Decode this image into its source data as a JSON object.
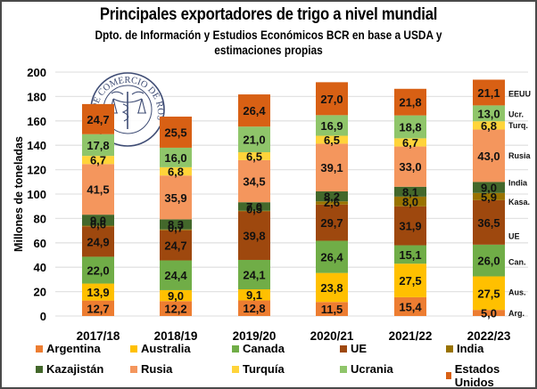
{
  "chart_data": {
    "type": "bar",
    "stacked": true,
    "title": "Principales exportadores de trigo a nivel mundial",
    "subtitle": "Dpto. de Información y Estudios Económicos BCR en base a USDA y estimaciones propias",
    "subtitle_lines": [
      "Dpto. de Información y Estudios Económicos BCR en base a USDA y",
      "estimaciones propias"
    ],
    "xlabel": "",
    "ylabel": "Millones de toneladas",
    "ylim": [
      0,
      200
    ],
    "yticks": [
      0,
      20,
      40,
      60,
      80,
      100,
      120,
      140,
      160,
      180,
      200
    ],
    "grid": true,
    "legend_position": "bottom",
    "categories": [
      "2017/18",
      "2018/19",
      "2019/20",
      "2020/21",
      "2021/22",
      "2022/23"
    ],
    "series": [
      {
        "name": "Argentina",
        "color": "#ED7D31",
        "values": [
          12.7,
          12.2,
          12.8,
          11.5,
          15.4,
          5.0
        ],
        "labels": [
          "12,7",
          "12,2",
          "12,8",
          "11,5",
          "15,4",
          "5,0"
        ]
      },
      {
        "name": "Australia",
        "color": "#FFC000",
        "values": [
          13.9,
          9.0,
          9.1,
          23.8,
          27.5,
          27.5
        ],
        "labels": [
          "13,9",
          "9,0",
          "9,1",
          "23,8",
          "27,5",
          "27,5"
        ]
      },
      {
        "name": "Canada",
        "color": "#70AD47",
        "values": [
          22.0,
          24.4,
          24.1,
          26.4,
          15.1,
          26.0
        ],
        "labels": [
          "22,0",
          "24,4",
          "24,1",
          "26,4",
          "15,1",
          "26,0"
        ]
      },
      {
        "name": "UE",
        "color": "#9E480E",
        "values": [
          24.9,
          24.7,
          39.8,
          29.7,
          31.9,
          36.5
        ],
        "labels": [
          "24,9",
          "24,7",
          "39,8",
          "29,7",
          "31,9",
          "36,5"
        ]
      },
      {
        "name": "India",
        "color": "#997300",
        "values": [
          0.6,
          0.7,
          0.5,
          2.6,
          8.0,
          5.9
        ],
        "labels": [
          "0,6",
          "0,7",
          "0,5",
          "2,6",
          "8,0",
          "5,9"
        ]
      },
      {
        "name": "Kazajistán",
        "color": "#43682B",
        "values": [
          9.0,
          8.3,
          7.0,
          8.2,
          8.1,
          9.0
        ],
        "labels": [
          "9,0",
          "8,3",
          "7,0",
          "8,2",
          "8,1",
          "9,0"
        ]
      },
      {
        "name": "Rusia",
        "color": "#F4965D",
        "values": [
          41.5,
          35.9,
          34.5,
          39.1,
          33.0,
          43.0
        ],
        "labels": [
          "41,5",
          "35,9",
          "34,5",
          "39,1",
          "33,0",
          "43,0"
        ]
      },
      {
        "name": "Turquía",
        "color": "#FFD43A",
        "values": [
          6.7,
          6.8,
          6.5,
          6.5,
          6.7,
          6.8
        ],
        "labels": [
          "6,7",
          "6,8",
          "6,5",
          "6,5",
          "6,7",
          "6,8"
        ]
      },
      {
        "name": "Ucrania",
        "color": "#8FC56A",
        "values": [
          17.8,
          16.0,
          21.0,
          16.9,
          18.8,
          13.0
        ],
        "labels": [
          "17,8",
          "16,0",
          "21,0",
          "16,9",
          "18,8",
          "13,0"
        ]
      },
      {
        "name": "Estados Unidos",
        "color": "#D86014",
        "values": [
          24.7,
          25.5,
          26.4,
          27.0,
          21.8,
          21.1
        ],
        "labels": [
          "24,7",
          "25,5",
          "26,4",
          "27,0",
          "21,8",
          "21,1"
        ]
      }
    ],
    "side_labels": [
      {
        "text": "EEUU",
        "at": 183
      },
      {
        "text": "Ucr.",
        "at": 166
      },
      {
        "text": "Turq.",
        "at": 157
      },
      {
        "text": "Rusia",
        "at": 132
      },
      {
        "text": "India",
        "at": 110
      },
      {
        "text": "Kasa.",
        "at": 94
      },
      {
        "text": "UE",
        "at": 66
      },
      {
        "text": "Can.",
        "at": 45
      },
      {
        "text": "Aus.",
        "at": 20
      },
      {
        "text": "Arg.",
        "at": 3
      }
    ]
  },
  "logo": {
    "name": "seal-logo",
    "text": "BOLSA DE COMERCIO DE ROSARIO"
  }
}
